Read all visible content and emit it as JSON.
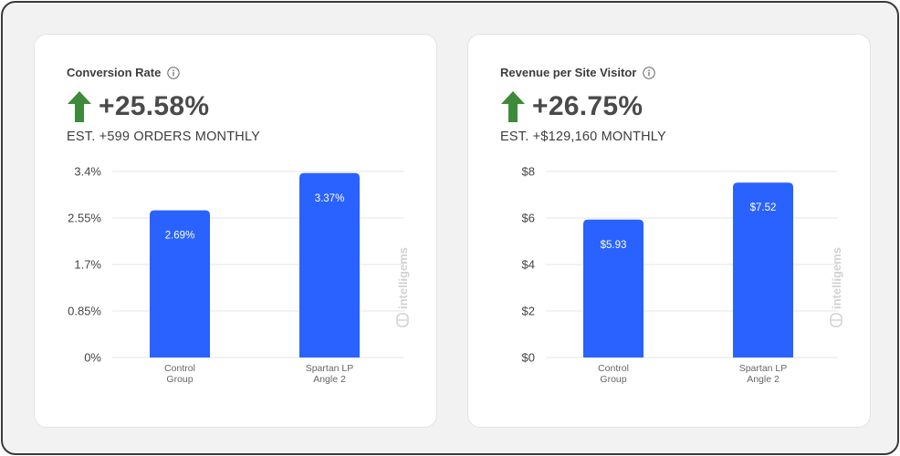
{
  "colors": {
    "bar": "#2962ff",
    "arrow": "#3e8a3b",
    "grid": "#e6e6e6",
    "watermark": "#d2d2d2"
  },
  "watermark": "intelligems",
  "cards": [
    {
      "title": "Conversion Rate",
      "icon": "info-icon",
      "change": "+25.58%",
      "change_icon": "up-arrow-icon",
      "estimate": "EST. +599 ORDERS MONTHLY"
    },
    {
      "title": "Revenue per Site Visitor",
      "icon": "info-icon",
      "change": "+26.75%",
      "change_icon": "up-arrow-icon",
      "estimate": "EST. +$129,160 MONTHLY"
    }
  ],
  "chart_data": [
    {
      "type": "bar",
      "categories": [
        [
          "Control",
          "Group"
        ],
        [
          "Spartan LP",
          "Angle 2"
        ]
      ],
      "values": [
        2.69,
        3.37
      ],
      "value_labels": [
        "2.69%",
        "3.37%"
      ],
      "yticks": [
        "0%",
        "0.85%",
        "1.7%",
        "2.55%",
        "3.4%"
      ],
      "ytick_values": [
        0,
        0.85,
        1.7,
        2.55,
        3.4
      ],
      "ylim": [
        0,
        3.4
      ],
      "grid": true
    },
    {
      "type": "bar",
      "categories": [
        [
          "Control",
          "Group"
        ],
        [
          "Spartan LP",
          "Angle 2"
        ]
      ],
      "values": [
        5.93,
        7.52
      ],
      "value_labels": [
        "$5.93",
        "$7.52"
      ],
      "yticks": [
        "$0",
        "$2",
        "$4",
        "$6",
        "$8"
      ],
      "ytick_values": [
        0,
        2,
        4,
        6,
        8
      ],
      "ylim": [
        0,
        8
      ],
      "grid": true
    }
  ]
}
